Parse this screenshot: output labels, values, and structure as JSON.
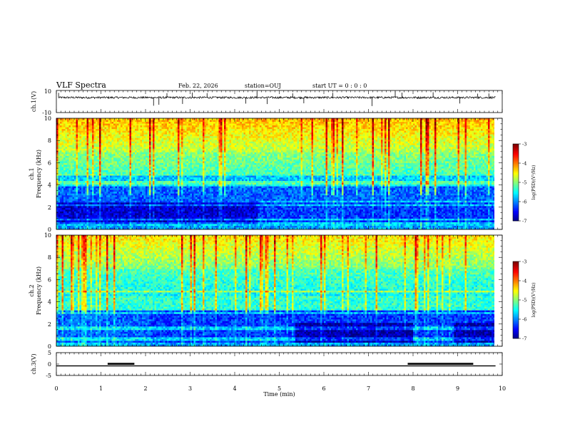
{
  "header": {
    "title": "VLF Spectra",
    "date": "Feb. 22, 2026",
    "station": "station=OUJ",
    "start": "start UT =  0 : 0 : 0"
  },
  "chart_data": [
    {
      "type": "line",
      "id": "ch1-waveform",
      "ylabel": "ch.1(V)",
      "ylim": [
        -10,
        10
      ],
      "yticks": [
        "10",
        "-10"
      ],
      "baseline": 3.6,
      "noise": 0.9,
      "spikes": [
        {
          "x": 0.05,
          "y": 7.9
        },
        {
          "x": 2.18,
          "y": -3.8
        },
        {
          "x": 2.3,
          "y": -2.9
        },
        {
          "x": 2.48,
          "y": 7.6
        },
        {
          "x": 2.83,
          "y": -2.2
        },
        {
          "x": 3.05,
          "y": 8.2
        },
        {
          "x": 3.38,
          "y": 7.6
        },
        {
          "x": 4.25,
          "y": -1.9
        },
        {
          "x": 4.5,
          "y": 9.0
        },
        {
          "x": 4.73,
          "y": -2.3
        },
        {
          "x": 5.3,
          "y": 7.4
        },
        {
          "x": 5.55,
          "y": -1.6
        },
        {
          "x": 6.2,
          "y": 7.8
        },
        {
          "x": 7.08,
          "y": -4.1
        },
        {
          "x": 7.6,
          "y": 9.2
        },
        {
          "x": 7.75,
          "y": 8.1
        },
        {
          "x": 8.45,
          "y": 8.4
        },
        {
          "x": 9.05,
          "y": -1.8
        },
        {
          "x": 9.45,
          "y": 7.1
        },
        {
          "x": 9.7,
          "y": 7.3
        }
      ]
    },
    {
      "type": "heatmap",
      "id": "ch1-spectrogram",
      "ylabel": "ch.1",
      "ylabel2": "Frequency (kHz)",
      "ylim": [
        0,
        10
      ],
      "yticks": [
        "0",
        "2",
        "4",
        "6",
        "8",
        "10"
      ],
      "colorbar": {
        "label": "log(PSD)(V²/Hz)",
        "ticks": [
          "-3",
          "-4",
          "-5",
          "-6",
          "-7"
        ],
        "range": [
          -7,
          -3
        ]
      }
    },
    {
      "type": "heatmap",
      "id": "ch2-spectrogram",
      "ylabel": "ch.2",
      "ylabel2": "Frequency (kHz)",
      "ylim": [
        0,
        10
      ],
      "yticks": [
        "0",
        "2",
        "4",
        "6",
        "8",
        "10"
      ],
      "colorbar": {
        "label": "log(PSD)(V²/Hz)",
        "ticks": [
          "-3",
          "-4",
          "-5",
          "-6",
          "-7"
        ],
        "range": [
          -7,
          -3
        ]
      }
    },
    {
      "type": "line",
      "id": "ch3-signal",
      "ylabel": "ch.3(V)",
      "ylim": [
        -5,
        5
      ],
      "yticks": [
        "5",
        "0",
        "-5"
      ],
      "level": -0.8,
      "pulses": [
        {
          "x0": 1.15,
          "x1": 1.75,
          "y": 0.1
        },
        {
          "x0": 7.88,
          "x1": 9.35,
          "y": 0.1
        }
      ]
    }
  ],
  "xaxis": {
    "label": "Time (min)",
    "xlim": [
      0,
      10
    ],
    "ticks": [
      "0",
      "1",
      "2",
      "3",
      "4",
      "5",
      "6",
      "7",
      "8",
      "9",
      "10"
    ],
    "data_end": 9.85
  },
  "colors": {
    "frame": "#000000",
    "background": "#ffffff",
    "low": "#00008f",
    "high": "#a00000"
  }
}
